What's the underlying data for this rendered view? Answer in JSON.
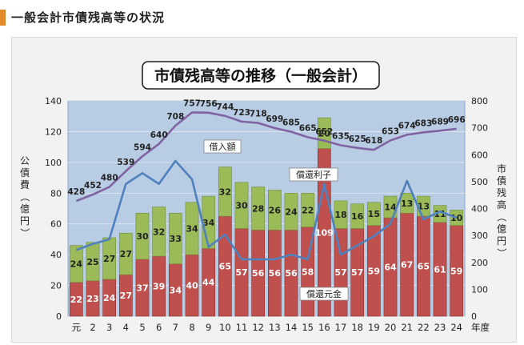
{
  "page": {
    "heading": "一般会計市債残高等の状況"
  },
  "chart_data": {
    "type": "bar",
    "title": "市債残高等の推移（一般会計）",
    "categories": [
      "元",
      "2",
      "3",
      "4",
      "5",
      "6",
      "7",
      "8",
      "9",
      "10",
      "11",
      "12",
      "13",
      "14",
      "15",
      "16",
      "17",
      "18",
      "19",
      "20",
      "21",
      "22",
      "23",
      "24"
    ],
    "xunit": "年度",
    "left_axis": {
      "label": "公債費（億円）",
      "ylim": [
        0,
        140
      ],
      "ticks": [
        0,
        20,
        40,
        60,
        80,
        100,
        120,
        140
      ]
    },
    "right_axis": {
      "label": "市債残高（億円）",
      "ylim": [
        0,
        800
      ],
      "ticks": [
        0,
        100,
        200,
        300,
        400,
        500,
        600,
        700,
        800
      ]
    },
    "series": [
      {
        "name": "償還元金",
        "kind": "stacked-bar",
        "color": "#c0504d",
        "values": [
          22,
          23,
          24,
          27,
          37,
          39,
          34,
          40,
          44,
          65,
          57,
          56,
          56,
          56,
          58,
          109,
          57,
          57,
          59,
          64,
          67,
          65,
          61,
          59
        ]
      },
      {
        "name": "償還利子",
        "kind": "stacked-bar",
        "color": "#9bbb59",
        "values": [
          24,
          25,
          27,
          27,
          30,
          32,
          33,
          34,
          34,
          32,
          30,
          28,
          26,
          24,
          22,
          20,
          18,
          16,
          15,
          14,
          13,
          13,
          11,
          10
        ]
      },
      {
        "name": "借入額",
        "kind": "line",
        "axis": "left",
        "color": "#4f81bd",
        "values": [
          43,
          47,
          50,
          86,
          93,
          86,
          101,
          89,
          45,
          53,
          37,
          37,
          37,
          40,
          37,
          86,
          40,
          46,
          52,
          60,
          88,
          63,
          68,
          64
        ]
      },
      {
        "name": "市債残高",
        "kind": "line",
        "axis": "right",
        "color": "#8064a2",
        "values": [
          428,
          452,
          480,
          539,
          594,
          640,
          708,
          757,
          756,
          744,
          723,
          718,
          699,
          685,
          665,
          652,
          635,
          625,
          618,
          653,
          674,
          683,
          689,
          696
        ]
      }
    ],
    "annotations": [
      "借入額",
      "償還利子",
      "償還元金"
    ]
  }
}
